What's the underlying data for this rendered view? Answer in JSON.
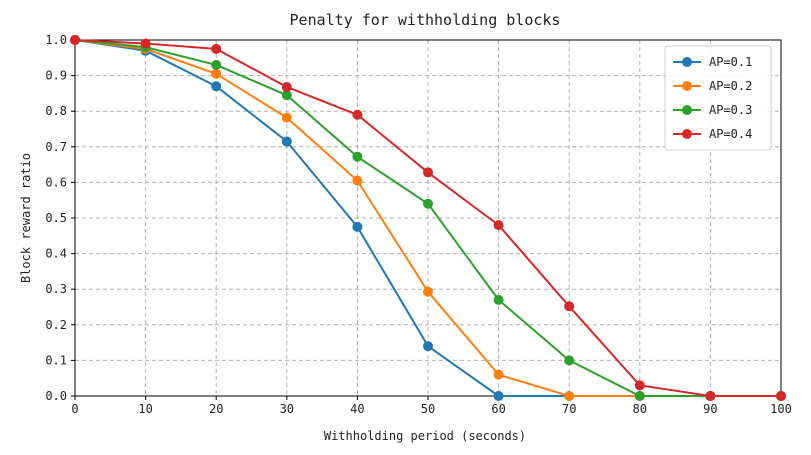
{
  "chart_data": {
    "type": "line",
    "title": "Penalty for withholding blocks",
    "xlabel": "Withholding period (seconds)",
    "ylabel": "Block reward ratio",
    "xlim": [
      0,
      100
    ],
    "ylim": [
      0,
      1.0
    ],
    "xticks": [
      "0",
      "10",
      "20",
      "30",
      "40",
      "50",
      "60",
      "70",
      "80",
      "90",
      "100"
    ],
    "yticks": [
      "0.0",
      "0.1",
      "0.2",
      "0.3",
      "0.4",
      "0.5",
      "0.6",
      "0.7",
      "0.8",
      "0.9",
      "1.0"
    ],
    "grid": true,
    "legend_position": "top-right",
    "x": [
      0,
      10,
      20,
      30,
      40,
      50,
      60,
      70,
      80,
      90,
      100
    ],
    "series": [
      {
        "name": "AP=0.1",
        "color": "#1f77b4",
        "values": [
          1.0,
          0.97,
          0.87,
          0.715,
          0.475,
          0.14,
          0.0,
          0.0,
          0.0,
          0.0,
          0.0
        ]
      },
      {
        "name": "AP=0.2",
        "color": "#ff7f0e",
        "values": [
          1.0,
          0.975,
          0.905,
          0.782,
          0.605,
          0.293,
          0.06,
          0.0,
          0.0,
          0.0,
          0.0
        ]
      },
      {
        "name": "AP=0.3",
        "color": "#2ca02c",
        "values": [
          1.0,
          0.98,
          0.93,
          0.845,
          0.672,
          0.54,
          0.27,
          0.1,
          0.0,
          0.0,
          0.0
        ]
      },
      {
        "name": "AP=0.4",
        "color": "#d62728",
        "values": [
          1.0,
          0.99,
          0.975,
          0.868,
          0.79,
          0.628,
          0.48,
          0.252,
          0.03,
          0.0,
          0.0
        ]
      }
    ]
  }
}
